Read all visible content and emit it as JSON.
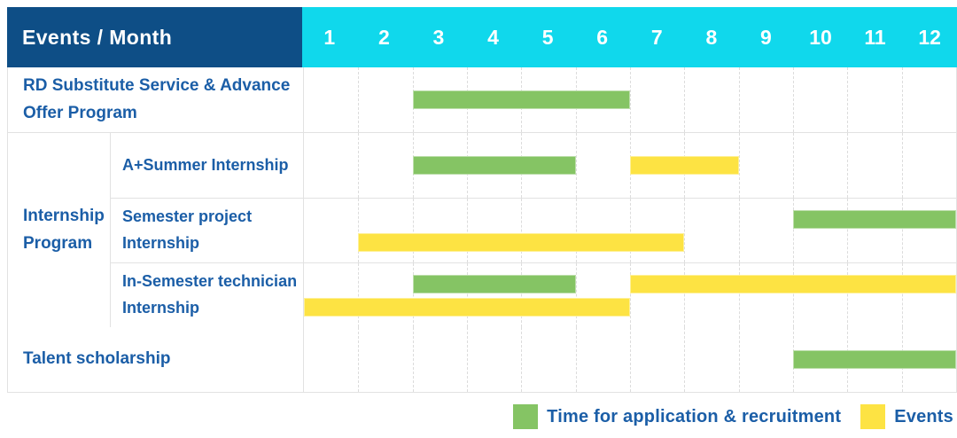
{
  "colors": {
    "header_bg": "#0e4e86",
    "month_header_bg": "#10d8ec",
    "recruitment": "#85c464",
    "events": "#fde343",
    "label_text": "#1b5ea7",
    "grid": "#e2e2e2"
  },
  "chart_data": {
    "type": "gantt",
    "title": "Events / Month",
    "x": {
      "unit": "month",
      "ticks": [
        "1",
        "2",
        "3",
        "4",
        "5",
        "6",
        "7",
        "8",
        "9",
        "10",
        "11",
        "12"
      ],
      "range": [
        1,
        12
      ]
    },
    "series": [
      {
        "key": "recruitment",
        "name": "Time for application & recruitment",
        "color": "#85c464"
      },
      {
        "key": "events",
        "name": "Events",
        "color": "#fde343"
      }
    ],
    "rows": [
      {
        "group": "",
        "label": "RD Substitute Service & Advance Offer Program",
        "bars": [
          {
            "type": "recruitment",
            "start": 3,
            "end": 6,
            "lane": "center"
          }
        ]
      },
      {
        "group": "Internship Program",
        "label": "A+Summer Internship",
        "bars": [
          {
            "type": "recruitment",
            "start": 3,
            "end": 5,
            "lane": "center"
          },
          {
            "type": "events",
            "start": 7,
            "end": 8,
            "lane": "center"
          }
        ]
      },
      {
        "group": "Internship Program",
        "label": "Semester project Internship",
        "bars": [
          {
            "type": "recruitment",
            "start": 10,
            "end": 12,
            "lane": "top"
          },
          {
            "type": "events",
            "start": 2,
            "end": 7,
            "lane": "bottom"
          }
        ]
      },
      {
        "group": "Internship Program",
        "label": "In-Semester technician Internship",
        "bars": [
          {
            "type": "recruitment",
            "start": 3,
            "end": 5,
            "lane": "top"
          },
          {
            "type": "events",
            "start": 7,
            "end": 12,
            "lane": "top"
          },
          {
            "type": "events",
            "start": 1,
            "end": 6,
            "lane": "bottom"
          }
        ]
      },
      {
        "group": "",
        "label": "Talent scholarship",
        "bars": [
          {
            "type": "recruitment",
            "start": 10,
            "end": 12,
            "lane": "center"
          }
        ]
      }
    ],
    "legend_position": "bottom-right"
  }
}
